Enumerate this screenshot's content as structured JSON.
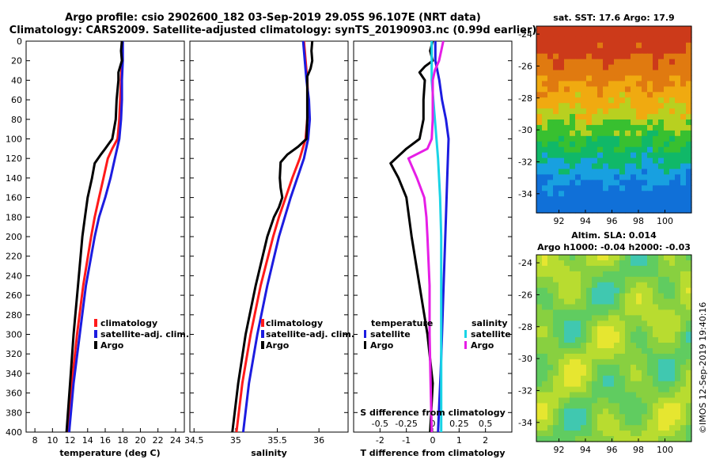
{
  "title": {
    "line1": "Argo profile: csio 2902600_182 03-Sep-2019 29.05S 96.107E (NRT data)",
    "line2": "Climatology: CARS2009. Satellite-adjusted climatology: synTS_20190903.nc (0.99d earlier)"
  },
  "colors": {
    "climatology": "#ff1a1a",
    "satellite": "#1c1ce0",
    "argo": "#000000",
    "sal_argo": "#e61ee6",
    "sal_sat": "#19d4e6"
  },
  "depth_ticks": [
    "0",
    "20",
    "40",
    "60",
    "80",
    "100",
    "120",
    "140",
    "160",
    "180",
    "200",
    "220",
    "240",
    "260",
    "280",
    "300",
    "320",
    "340",
    "360",
    "380",
    "400"
  ],
  "chart_data": [
    {
      "type": "line",
      "name": "temperature",
      "xlabel": "temperature (deg C)",
      "ylabel": "depth",
      "xlim": [
        7,
        25
      ],
      "ylim": [
        400,
        0
      ],
      "xticks": [
        "8",
        "10",
        "12",
        "14",
        "16",
        "18",
        "20",
        "22",
        "24"
      ],
      "xtick_values": [
        8,
        10,
        12,
        14,
        16,
        18,
        20,
        22,
        24
      ],
      "legend": [
        "climatology",
        "satellite-adj. clim.",
        "Argo"
      ],
      "series": [
        {
          "name": "climatology",
          "color_key": "climatology",
          "depth": [
            0,
            20,
            40,
            60,
            80,
            100,
            110,
            120,
            140,
            160,
            180,
            200,
            250,
            300,
            350,
            400
          ],
          "values": [
            17.9,
            17.9,
            17.8,
            17.7,
            17.6,
            17.4,
            16.8,
            16.3,
            15.8,
            15.3,
            14.8,
            14.4,
            13.5,
            12.8,
            12.2,
            11.7
          ]
        },
        {
          "name": "satellite-adj. clim.",
          "color_key": "satellite",
          "depth": [
            0,
            20,
            40,
            60,
            80,
            100,
            120,
            140,
            160,
            180,
            200,
            250,
            300,
            350,
            400
          ],
          "values": [
            18.0,
            18.0,
            17.9,
            17.9,
            17.8,
            17.6,
            17.1,
            16.6,
            16.0,
            15.3,
            14.8,
            13.8,
            13.1,
            12.4,
            11.9
          ]
        },
        {
          "name": "Argo",
          "color_key": "argo",
          "depth": [
            0,
            10,
            20,
            26,
            32,
            40,
            60,
            80,
            100,
            110,
            116,
            125,
            140,
            160,
            180,
            200,
            250,
            300,
            350,
            400
          ],
          "values": [
            17.9,
            17.8,
            17.9,
            17.7,
            17.5,
            17.5,
            17.3,
            17.2,
            16.8,
            16.0,
            15.5,
            14.8,
            14.5,
            14.0,
            13.7,
            13.4,
            12.9,
            12.4,
            12.0,
            11.6
          ]
        }
      ]
    },
    {
      "type": "line",
      "name": "salinity",
      "xlabel": "salinity",
      "ylabel": "depth",
      "xlim": [
        34.45,
        36.35
      ],
      "ylim": [
        400,
        0
      ],
      "xticks": [
        "34.5",
        "35",
        "35.5",
        "36"
      ],
      "xtick_values": [
        34.5,
        35.0,
        35.5,
        36.0
      ],
      "legend": [
        "climatology",
        "satellite-adj. clim.",
        "Argo"
      ],
      "series": [
        {
          "name": "climatology",
          "color_key": "climatology",
          "depth": [
            0,
            20,
            40,
            60,
            80,
            100,
            120,
            140,
            160,
            180,
            200,
            250,
            300,
            350,
            400
          ],
          "values": [
            35.82,
            35.84,
            35.86,
            35.87,
            35.86,
            35.84,
            35.77,
            35.68,
            35.6,
            35.52,
            35.45,
            35.3,
            35.18,
            35.08,
            35.01
          ]
        },
        {
          "name": "satellite-adj. clim.",
          "color_key": "satellite",
          "depth": [
            0,
            20,
            40,
            60,
            80,
            100,
            120,
            140,
            160,
            180,
            200,
            250,
            300,
            350,
            400
          ],
          "values": [
            35.81,
            35.83,
            35.85,
            35.88,
            35.89,
            35.87,
            35.82,
            35.74,
            35.66,
            35.59,
            35.52,
            35.38,
            35.26,
            35.16,
            35.09
          ]
        },
        {
          "name": "Argo",
          "color_key": "argo",
          "depth": [
            0,
            10,
            20,
            28,
            36,
            60,
            80,
            100,
            108,
            116,
            124,
            140,
            150,
            160,
            170,
            180,
            200,
            250,
            300,
            350,
            400
          ],
          "values": [
            35.92,
            35.91,
            35.92,
            35.9,
            35.86,
            35.86,
            35.86,
            35.85,
            35.75,
            35.62,
            35.54,
            35.53,
            35.54,
            35.56,
            35.52,
            35.46,
            35.38,
            35.24,
            35.12,
            35.03,
            34.96
          ]
        }
      ]
    },
    {
      "type": "line",
      "name": "difference",
      "xlabel": "T difference from climatology",
      "xlabel_top": "S difference from climatology",
      "ylabel": "depth",
      "xlim": [
        -3,
        3
      ],
      "ylim": [
        400,
        0
      ],
      "xticks": [
        "-2",
        "-1",
        "0",
        "1",
        "2"
      ],
      "xtick_values": [
        -2,
        -1,
        0,
        1,
        2
      ],
      "xticks_top": [
        "-0.5",
        "-0.25",
        "0",
        "0.25",
        "0.5"
      ],
      "xtick_top_values": [
        -0.5,
        -0.25,
        0,
        0.25,
        0.5
      ],
      "legend_temperature": {
        "title": "temperature",
        "items": [
          "satellite",
          "Argo"
        ]
      },
      "legend_salinity": {
        "title": "salinity",
        "items": [
          "satellite",
          "Argo"
        ]
      },
      "series": [
        {
          "name": "temperature satellite",
          "color_key": "satellite",
          "scale": "T",
          "depth": [
            0,
            20,
            40,
            60,
            80,
            100,
            140,
            180,
            220,
            260,
            300,
            340,
            370,
            400
          ],
          "values": [
            0.1,
            0.1,
            0.25,
            0.35,
            0.5,
            0.6,
            0.55,
            0.5,
            0.45,
            0.4,
            0.35,
            0.3,
            0.25,
            0.2
          ]
        },
        {
          "name": "temperature Argo",
          "color_key": "argo",
          "scale": "T",
          "depth": [
            0,
            10,
            20,
            26,
            32,
            40,
            60,
            80,
            100,
            110,
            125,
            140,
            160,
            180,
            200,
            250,
            300,
            350,
            400
          ],
          "values": [
            0.0,
            -0.1,
            0.0,
            -0.3,
            -0.5,
            -0.3,
            -0.35,
            -0.35,
            -0.5,
            -1.0,
            -1.6,
            -1.3,
            -1.0,
            -0.9,
            -0.8,
            -0.5,
            -0.2,
            0.0,
            -0.1
          ]
        },
        {
          "name": "salinity satellite",
          "color_key": "sal_sat",
          "scale": "S",
          "depth": [
            0,
            20,
            40,
            80,
            120,
            160,
            200,
            250,
            300,
            350,
            400
          ],
          "values": [
            -0.01,
            -0.01,
            -0.01,
            0.02,
            0.05,
            0.07,
            0.08,
            0.08,
            0.08,
            0.08,
            0.08
          ]
        },
        {
          "name": "salinity Argo",
          "color_key": "sal_argo",
          "scale": "S",
          "depth": [
            0,
            10,
            20,
            30,
            40,
            60,
            80,
            100,
            110,
            120,
            140,
            160,
            180,
            200,
            250,
            300,
            350,
            400
          ],
          "values": [
            0.1,
            0.08,
            0.06,
            0.02,
            0.0,
            0.0,
            0.0,
            -0.01,
            -0.05,
            -0.23,
            -0.15,
            -0.08,
            -0.06,
            -0.05,
            -0.03,
            -0.03,
            -0.02,
            -0.01
          ]
        }
      ]
    },
    {
      "type": "heatmap",
      "name": "sst_map",
      "title": "sat. SST: 17.6 Argo: 17.9",
      "xticks": [
        "92",
        "94",
        "96",
        "98",
        "100"
      ],
      "xtick_values": [
        92,
        94,
        96,
        98,
        100
      ],
      "yticks": [
        "-24",
        "-26",
        "-28",
        "-30",
        "-32",
        "-34"
      ],
      "ytick_values": [
        -24,
        -26,
        -28,
        -30,
        -32,
        -34
      ],
      "xlim": [
        90.3,
        102
      ],
      "ylim": [
        -35.2,
        -23.5
      ]
    },
    {
      "type": "heatmap",
      "name": "sla_map",
      "title": "Altim. SLA: 0.014",
      "subtitle": "Argo h1000: -0.04 h2000: -0.03",
      "xticks": [
        "92",
        "94",
        "96",
        "98",
        "100"
      ],
      "xtick_values": [
        92,
        94,
        96,
        98,
        100
      ],
      "yticks": [
        "-24",
        "-26",
        "-28",
        "-30",
        "-32",
        "-34"
      ],
      "ytick_values": [
        -24,
        -26,
        -28,
        -30,
        -32,
        -34
      ],
      "xlim": [
        90.3,
        102
      ],
      "ylim": [
        -35.2,
        -23.5
      ]
    }
  ],
  "footer": "©IMOS 12-Sep-2019 19:40:16"
}
